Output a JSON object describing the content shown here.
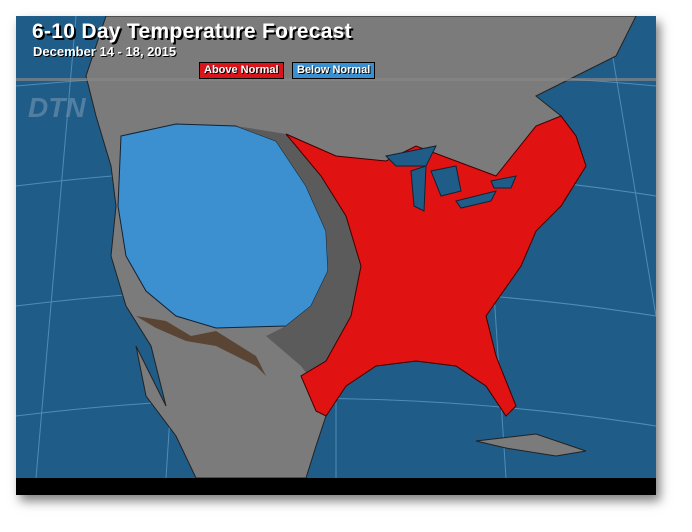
{
  "title": "6-10 Day Temperature Forecast",
  "subtitle": "December 14 - 18, 2015",
  "legend": [
    {
      "label": "Above Normal",
      "color": "#d9141b"
    },
    {
      "label": "Below Normal",
      "color": "#3a8fd0"
    }
  ],
  "logo": "DTN",
  "colors": {
    "ocean": "#1f5d88",
    "land": "#7b7b7b",
    "transition": "#5b5b5b",
    "above": "#e01212",
    "below": "#3d90d0"
  }
}
